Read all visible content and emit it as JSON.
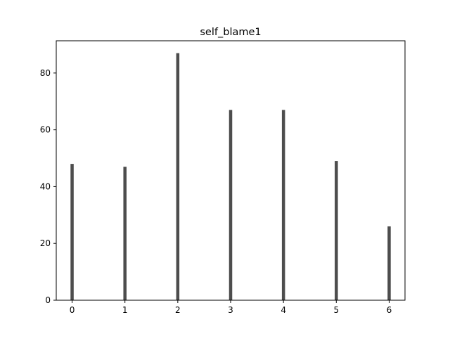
{
  "chart_data": {
    "type": "bar",
    "title": "self_blame1",
    "xlabel": "",
    "ylabel": "",
    "categories": [
      "0",
      "1",
      "2",
      "3",
      "4",
      "5",
      "6"
    ],
    "x": [
      0,
      1,
      2,
      3,
      4,
      5,
      6
    ],
    "values": [
      48,
      47,
      87,
      67,
      67,
      49,
      26
    ],
    "xlim": [
      -0.3,
      6.3
    ],
    "ylim": [
      0,
      91.35
    ],
    "xticks": [
      0,
      1,
      2,
      3,
      4,
      5,
      6
    ],
    "xtick_labels": [
      "0",
      "1",
      "2",
      "3",
      "4",
      "5",
      "6"
    ],
    "yticks": [
      0,
      20,
      40,
      60,
      80
    ],
    "ytick_labels": [
      "0",
      "20",
      "40",
      "60",
      "80"
    ],
    "bar_width": 0.06,
    "bar_color": "#4d4d4d",
    "grid": false,
    "legend": "none"
  }
}
